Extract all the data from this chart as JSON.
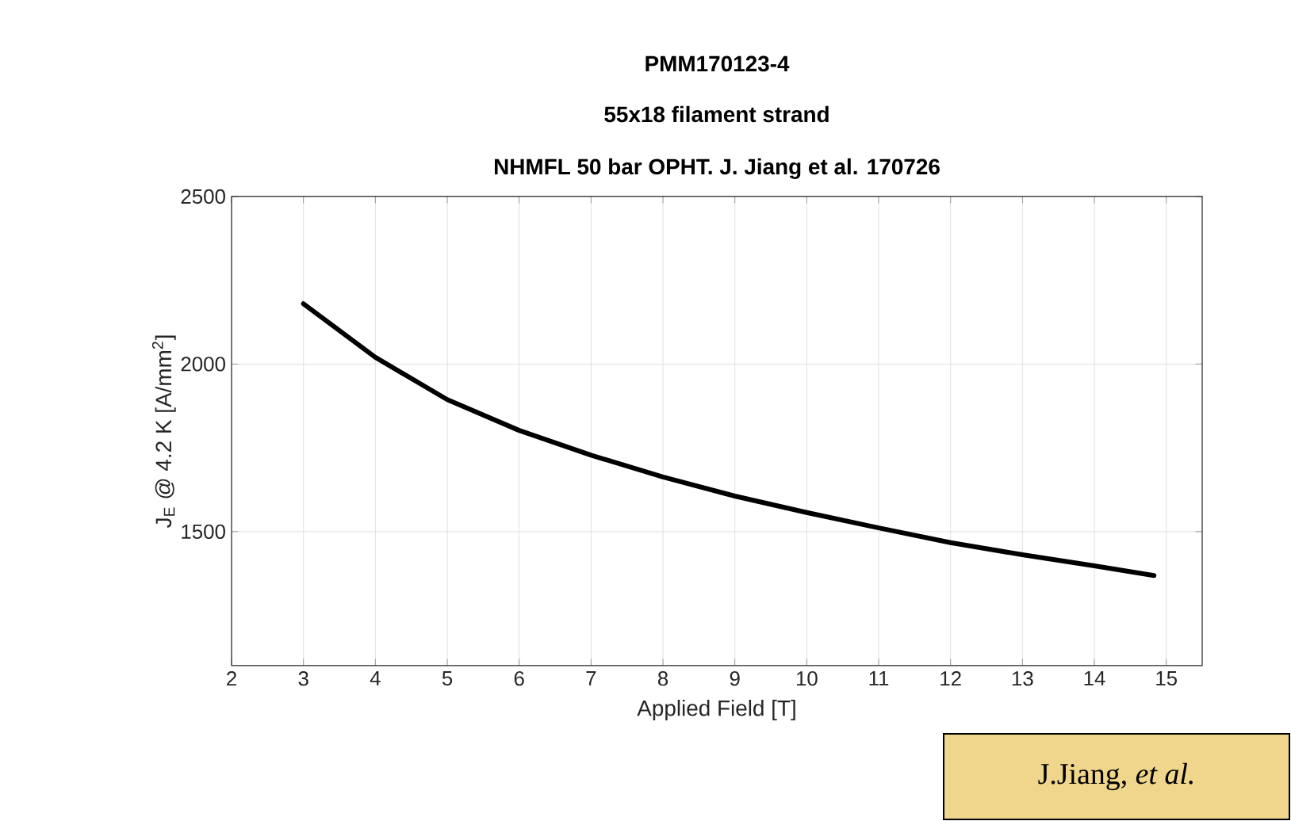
{
  "chart_data": {
    "type": "line",
    "title": "PMM170123-4",
    "subtitle": "55x18 filament strand",
    "annotations": [
      "NHMFL 50 bar OPHT. J. Jiang et al. 170726",
      "J.Jiang, *et al.*"
    ],
    "xlabel": "Applied Field [T]",
    "ylabel": "J$_{E}$ @ 4.2 K [A/mm$^{2}$]",
    "x": [
      3,
      4,
      5,
      6,
      7,
      8,
      9,
      10,
      11,
      12,
      13,
      14,
      14.83
    ],
    "series": [
      {
        "color": "#000000",
        "values": [
          2180,
          2020,
          1894,
          1802,
          1728,
          1663,
          1606,
          1557,
          1511,
          1467,
          1431,
          1398,
          1369
        ]
      }
    ],
    "xlim": [
      2,
      15.5
    ],
    "ylim": [
      1100,
      2500
    ],
    "xticks": [
      2,
      3,
      4,
      5,
      6,
      7,
      8,
      9,
      10,
      11,
      12,
      13,
      14,
      15
    ],
    "yticks": [
      1500,
      2000,
      2500
    ],
    "grid": true,
    "marker": "none",
    "line_style": "solid"
  }
}
